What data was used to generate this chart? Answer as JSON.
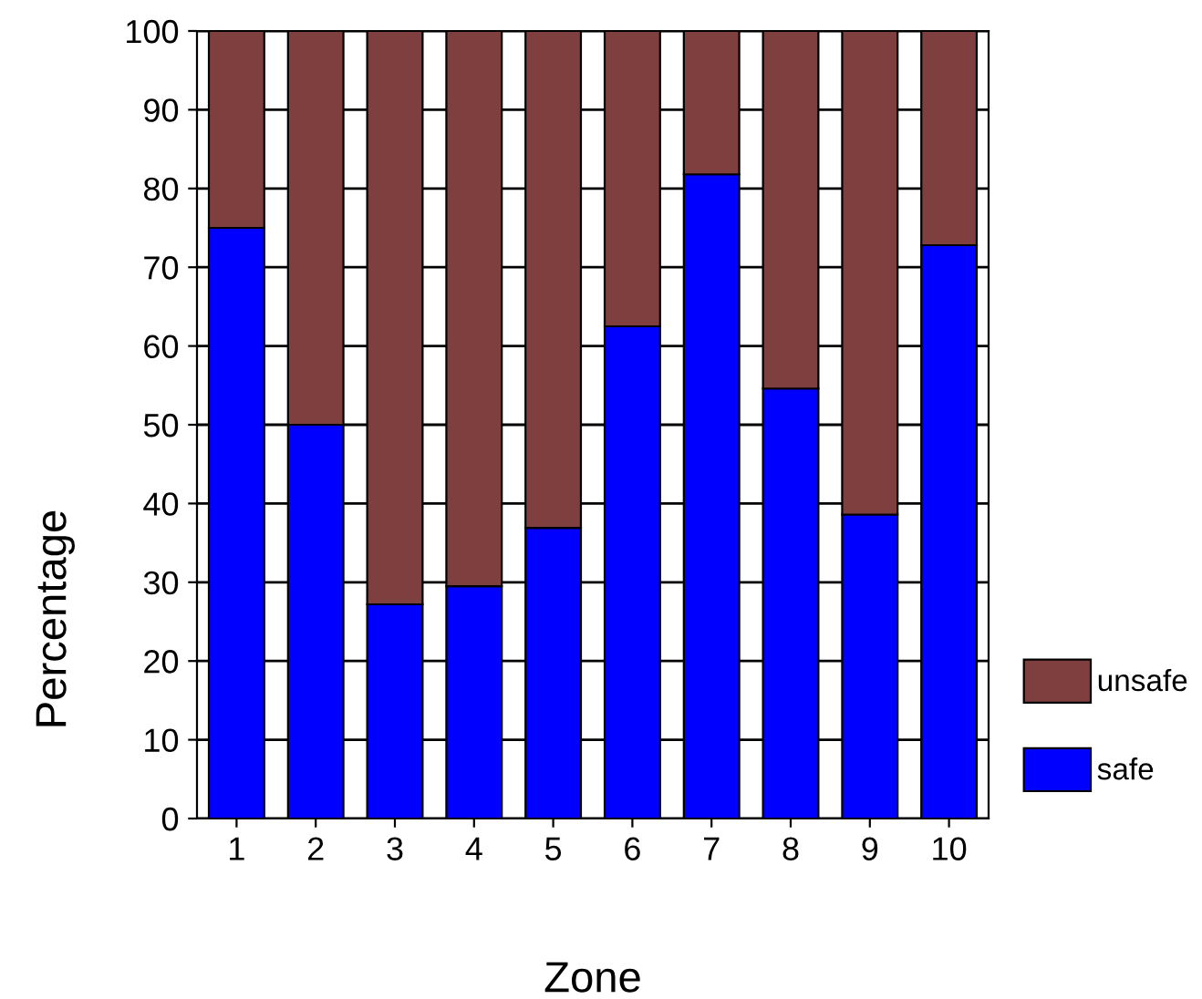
{
  "chart_data": {
    "type": "bar",
    "stacked": true,
    "xlabel": "Zone",
    "ylabel": "Percentage",
    "categories": [
      "1",
      "2",
      "3",
      "4",
      "5",
      "6",
      "7",
      "8",
      "9",
      "10"
    ],
    "series": [
      {
        "name": "safe",
        "color": "#0000ff",
        "values": [
          75,
          50,
          27.2,
          29.5,
          36.9,
          62.5,
          81.8,
          54.6,
          38.6,
          72.8
        ]
      },
      {
        "name": "unsafe",
        "color": "#7f3f3f",
        "values": [
          25,
          50,
          72.8,
          70.5,
          63.1,
          37.5,
          18.2,
          45.4,
          61.4,
          27.2
        ]
      }
    ],
    "ylim": [
      0,
      100
    ],
    "yticks": [
      0,
      10,
      20,
      30,
      40,
      50,
      60,
      70,
      80,
      90,
      100
    ],
    "grid": "y",
    "legend": "right"
  }
}
